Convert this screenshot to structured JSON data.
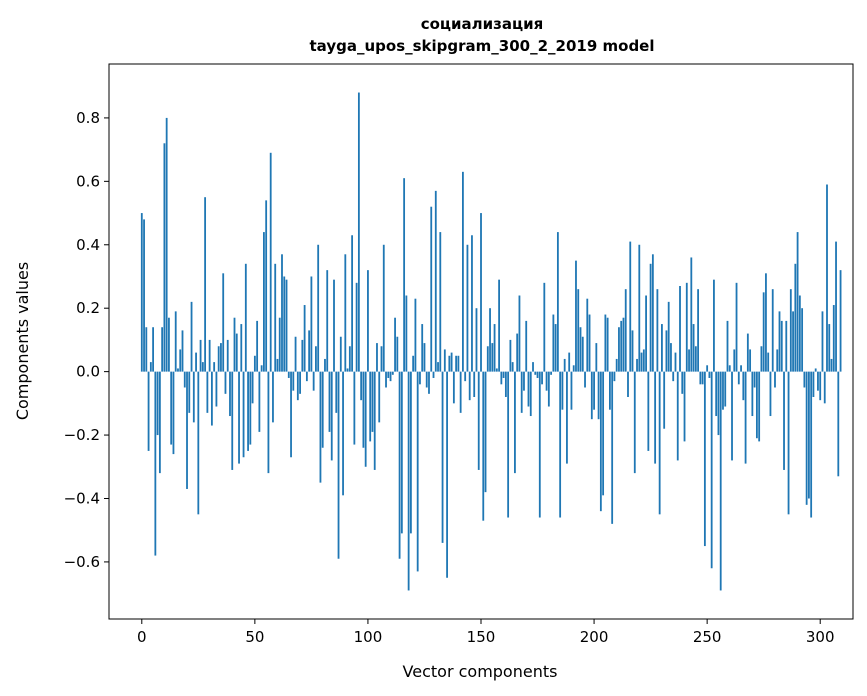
{
  "chart_data": {
    "type": "bar",
    "title": "социализация",
    "subtitle": "tayga_upos_skipgram_300_2_2019 model",
    "xlabel": "Vector components",
    "ylabel": "Components values",
    "xlim": [
      -14.5,
      314.5
    ],
    "ylim": [
      -0.78,
      0.97
    ],
    "xticks": [
      0,
      50,
      100,
      150,
      200,
      250,
      300
    ],
    "xtick_labels": [
      "0",
      "50",
      "100",
      "150",
      "200",
      "250",
      "300"
    ],
    "yticks": [
      -0.6,
      -0.4,
      -0.2,
      0.0,
      0.2,
      0.4,
      0.6,
      0.8
    ],
    "ytick_labels": [
      "−0.6",
      "−0.4",
      "−0.2",
      "0.0",
      "0.2",
      "0.4",
      "0.6",
      "0.8"
    ],
    "grid": false,
    "color": "#1f77b4",
    "values": [
      0.5,
      0.48,
      0.14,
      -0.25,
      0.03,
      0.14,
      -0.58,
      -0.2,
      -0.32,
      0.14,
      0.72,
      0.8,
      0.17,
      -0.23,
      -0.26,
      0.19,
      0.01,
      0.07,
      0.13,
      -0.05,
      -0.37,
      -0.13,
      0.22,
      -0.16,
      0.06,
      -0.45,
      0.1,
      0.03,
      0.55,
      -0.13,
      0.1,
      -0.17,
      0.03,
      -0.11,
      0.08,
      0.09,
      0.31,
      -0.07,
      0.1,
      -0.14,
      -0.31,
      0.17,
      0.12,
      -0.29,
      0.15,
      -0.27,
      0.34,
      -0.25,
      -0.23,
      -0.1,
      0.05,
      0.16,
      -0.19,
      0.02,
      0.44,
      0.54,
      -0.32,
      0.69,
      -0.16,
      0.34,
      0.04,
      0.17,
      0.37,
      0.3,
      0.29,
      -0.02,
      -0.27,
      -0.06,
      0.11,
      -0.09,
      -0.07,
      0.1,
      0.21,
      -0.03,
      0.13,
      0.3,
      -0.06,
      0.08,
      0.4,
      -0.35,
      -0.24,
      0.04,
      0.32,
      -0.19,
      -0.28,
      0.29,
      -0.13,
      -0.59,
      0.11,
      -0.39,
      0.37,
      0.01,
      0.08,
      0.43,
      -0.23,
      0.28,
      0.88,
      -0.09,
      -0.24,
      -0.3,
      0.32,
      -0.22,
      -0.19,
      -0.31,
      0.09,
      -0.16,
      0.08,
      0.4,
      -0.05,
      -0.02,
      -0.03,
      -0.01,
      0.17,
      0.11,
      -0.59,
      -0.51,
      0.61,
      0.24,
      -0.69,
      -0.51,
      0.05,
      0.23,
      -0.63,
      -0.04,
      0.15,
      0.09,
      -0.05,
      -0.07,
      0.52,
      -0.02,
      0.57,
      0.03,
      0.44,
      -0.54,
      0.07,
      -0.65,
      0.05,
      0.06,
      -0.1,
      0.05,
      0.05,
      -0.13,
      0.63,
      -0.03,
      0.4,
      -0.09,
      0.43,
      -0.08,
      0.2,
      -0.31,
      0.5,
      -0.47,
      -0.38,
      0.08,
      0.2,
      0.09,
      0.15,
      0.01,
      0.29,
      -0.04,
      -0.02,
      -0.08,
      -0.46,
      0.1,
      0.03,
      -0.32,
      0.12,
      0.24,
      -0.13,
      -0.06,
      0.16,
      -0.11,
      -0.14,
      0.03,
      -0.01,
      -0.02,
      -0.46,
      -0.04,
      0.28,
      -0.06,
      -0.11,
      -0.01,
      0.18,
      0.15,
      0.44,
      -0.46,
      -0.12,
      0.04,
      -0.29,
      0.06,
      -0.12,
      0.02,
      0.35,
      0.26,
      0.14,
      0.11,
      -0.05,
      0.23,
      0.18,
      -0.15,
      -0.12,
      0.09,
      -0.15,
      -0.44,
      -0.39,
      0.18,
      0.17,
      -0.12,
      -0.48,
      -0.03,
      0.04,
      0.14,
      0.16,
      0.17,
      0.26,
      -0.08,
      0.41,
      0.13,
      -0.32,
      0.04,
      0.4,
      0.06,
      0.07,
      0.24,
      -0.25,
      0.34,
      0.37,
      -0.29,
      0.26,
      -0.45,
      0.15,
      -0.18,
      0.13,
      0.22,
      0.09,
      -0.03,
      0.06,
      -0.28,
      0.27,
      -0.07,
      -0.22,
      0.28,
      0.07,
      0.36,
      0.15,
      0.08,
      0.26,
      -0.04,
      -0.04,
      -0.55,
      0.02,
      -0.02,
      -0.62,
      0.29,
      -0.14,
      -0.2,
      -0.69,
      -0.12,
      -0.11,
      0.16,
      0.02,
      -0.28,
      0.07,
      0.28,
      -0.04,
      0.02,
      -0.09,
      -0.29,
      0.12,
      0.07,
      -0.14,
      -0.05,
      -0.21,
      -0.22,
      0.08,
      0.25,
      0.31,
      0.06,
      -0.14,
      0.26,
      -0.05,
      0.07,
      0.19,
      0.16,
      -0.31,
      0.16,
      -0.45,
      0.26,
      0.19,
      0.34,
      0.44,
      0.24,
      0.2,
      -0.05,
      -0.42,
      -0.4,
      -0.46,
      -0.08,
      0.01,
      -0.06,
      -0.09,
      0.19,
      -0.1,
      0.59,
      0.15,
      0.04,
      0.21,
      0.41,
      -0.33,
      0.32
    ]
  }
}
